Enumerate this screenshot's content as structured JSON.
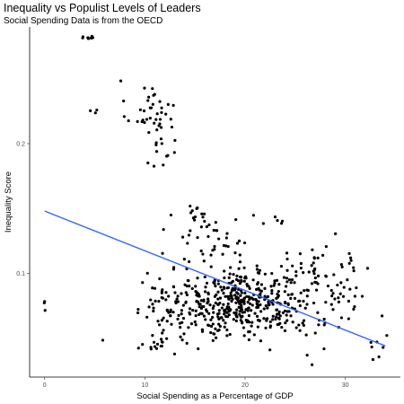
{
  "chart_data": {
    "type": "scatter",
    "title": "Inequality vs Populist Levels of Leaders",
    "subtitle": "Social Spending Data is from the OECD",
    "xlabel": "Social Spending as a Percentage of GDP",
    "ylabel": "Inequality Score",
    "xlim": [
      -1.5,
      35.5
    ],
    "ylim": [
      0.02,
      0.29
    ],
    "x_ticks": [
      0,
      10,
      20,
      30
    ],
    "y_ticks": [
      0.1,
      0.2
    ],
    "grid": false,
    "trend_line": {
      "x": [
        0,
        34
      ],
      "y": [
        0.148,
        0.044
      ],
      "color": "#3366ff"
    },
    "point_color": "#000000",
    "clusters": [
      {
        "cx": 4.2,
        "cy": 0.282,
        "sx": 0.5,
        "sy": 0.0005,
        "n": 10
      },
      {
        "cx": 10.5,
        "cy": 0.225,
        "sx": 1.2,
        "sy": 0.012,
        "n": 38
      },
      {
        "cx": 11.5,
        "cy": 0.195,
        "sx": 0.8,
        "sy": 0.008,
        "n": 12
      },
      {
        "cx": 5.5,
        "cy": 0.225,
        "sx": 0.4,
        "sy": 0.001,
        "n": 3
      },
      {
        "cx": 0.0,
        "cy": 0.075,
        "sx": 0.05,
        "sy": 0.006,
        "n": 3
      },
      {
        "cx": 5.8,
        "cy": 0.048,
        "sx": 0.1,
        "sy": 0.001,
        "n": 1
      },
      {
        "cx": 19.5,
        "cy": 0.078,
        "sx": 3.6,
        "sy": 0.014,
        "n": 430
      },
      {
        "cx": 12.5,
        "cy": 0.07,
        "sx": 1.1,
        "sy": 0.015,
        "n": 45
      },
      {
        "cx": 16.5,
        "cy": 0.13,
        "sx": 2.5,
        "sy": 0.01,
        "n": 40
      },
      {
        "cx": 26.5,
        "cy": 0.09,
        "sx": 1.8,
        "sy": 0.016,
        "n": 60
      },
      {
        "cx": 29.5,
        "cy": 0.085,
        "sx": 1.8,
        "sy": 0.015,
        "n": 25
      },
      {
        "cx": 33.5,
        "cy": 0.05,
        "sx": 0.6,
        "sy": 0.008,
        "n": 5
      },
      {
        "cx": 11.0,
        "cy": 0.045,
        "sx": 1.0,
        "sy": 0.003,
        "n": 12
      },
      {
        "cx": 15.5,
        "cy": 0.15,
        "sx": 0.6,
        "sy": 0.004,
        "n": 6
      },
      {
        "cx": 21.5,
        "cy": 0.14,
        "sx": 1.5,
        "sy": 0.003,
        "n": 5
      },
      {
        "cx": 30.5,
        "cy": 0.108,
        "sx": 0.7,
        "sy": 0.003,
        "n": 4
      },
      {
        "cx": 28.0,
        "cy": 0.035,
        "sx": 1.0,
        "sy": 0.003,
        "n": 3
      },
      {
        "cx": 32.5,
        "cy": 0.035,
        "sx": 0.5,
        "sy": 0.003,
        "n": 2
      }
    ]
  }
}
